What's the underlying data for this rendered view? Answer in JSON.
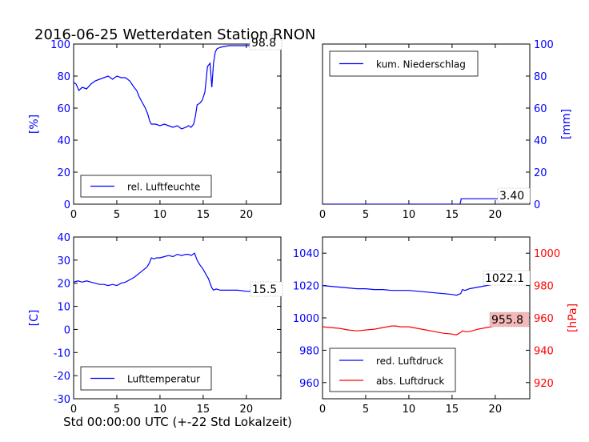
{
  "title": "2016-06-25 Wetterdaten Station RNON",
  "xlabel": "Std 00:00:00 UTC (+-22 Std Lokalzeit)",
  "colors": {
    "blue": "#0000ff",
    "red": "#ff0000",
    "black": "#000000",
    "label_bg_red": "#f4b8b8"
  },
  "chart_data": [
    {
      "id": "humidity",
      "type": "line",
      "ylabel": "[%]",
      "xlim": [
        0,
        24
      ],
      "ylim": [
        0,
        100
      ],
      "xticks": [
        0,
        5,
        10,
        15,
        20
      ],
      "yticks": [
        0,
        20,
        40,
        60,
        80,
        100
      ],
      "legend_placement": "lower-left",
      "value_label": "98.8",
      "series": [
        {
          "name": "rel. Luftfeuchte",
          "color": "#0000ff",
          "x": [
            0,
            0.3,
            0.6,
            1,
            1.5,
            2,
            2.5,
            3,
            3.5,
            4,
            4.5,
            5,
            5.5,
            6,
            6.5,
            7,
            7.3,
            7.6,
            8,
            8.3,
            8.6,
            8.8,
            9,
            9.5,
            10,
            10.5,
            11,
            11.5,
            12,
            12.5,
            13,
            13.3,
            13.6,
            13.9,
            14.1,
            14.3,
            14.6,
            14.9,
            15.2,
            15.5,
            15.8,
            16,
            16.2,
            16.4,
            16.6,
            17,
            17.5,
            18,
            19,
            20,
            21,
            22,
            23,
            23.9
          ],
          "y": [
            76,
            75,
            71,
            73,
            72,
            75,
            77,
            78,
            79,
            80,
            78,
            80,
            79,
            79,
            77,
            73,
            71,
            67,
            63,
            60,
            56,
            52,
            50,
            50,
            49,
            50,
            49,
            48,
            49,
            47,
            48,
            49,
            48,
            50,
            55,
            62,
            63,
            65,
            70,
            86,
            88,
            73,
            88,
            95,
            97,
            98,
            98.5,
            99,
            99,
            99,
            99,
            99,
            99,
            98.8
          ]
        }
      ]
    },
    {
      "id": "precipitation",
      "type": "line",
      "ylabel": "[mm]",
      "xlim": [
        0,
        24
      ],
      "ylim": [
        0,
        100
      ],
      "xticks": [
        0,
        5,
        10,
        15,
        20
      ],
      "yticks": [
        0,
        20,
        40,
        60,
        80,
        100
      ],
      "legend_placement": "top-left",
      "value_label": "3.40",
      "series": [
        {
          "name": "kum. Niederschlag",
          "color": "#0000ff",
          "x": [
            0,
            15.9,
            16.0,
            16.05,
            23.9
          ],
          "y": [
            0,
            0,
            1.7,
            3.4,
            3.4
          ]
        }
      ]
    },
    {
      "id": "temperature",
      "type": "line",
      "ylabel": "[C]",
      "xlim": [
        0,
        24
      ],
      "ylim": [
        -30,
        40
      ],
      "xticks": [
        0,
        5,
        10,
        15,
        20
      ],
      "yticks": [
        -30,
        -20,
        -10,
        0,
        10,
        20,
        30,
        40
      ],
      "legend_placement": "lower-left",
      "value_label": "15.5",
      "series": [
        {
          "name": "Lufttemperatur",
          "color": "#0000ff",
          "x": [
            0,
            0.5,
            1,
            1.5,
            2,
            2.5,
            3,
            3.5,
            4,
            4.5,
            5,
            5.5,
            6,
            6.5,
            7,
            7.5,
            8,
            8.5,
            8.8,
            9,
            9.3,
            9.6,
            10,
            10.5,
            11,
            11.5,
            12,
            12.5,
            13,
            13.3,
            13.6,
            14,
            14.3,
            14.6,
            15,
            15.3,
            15.6,
            15.8,
            16,
            16.2,
            16.5,
            17,
            18,
            19,
            20,
            21,
            22,
            23,
            23.9
          ],
          "y": [
            20.5,
            21,
            20.5,
            21,
            20.5,
            20,
            19.5,
            19.5,
            19,
            19.5,
            19,
            20,
            20.5,
            21.5,
            22.5,
            24,
            25.5,
            27,
            29,
            31,
            30.5,
            31,
            31,
            31.5,
            32,
            31.5,
            32.5,
            32,
            32.5,
            32.5,
            32,
            33,
            30,
            28,
            26,
            24,
            22,
            20,
            18,
            17,
            17.5,
            17,
            17,
            17,
            16.5,
            16.5,
            16,
            16,
            15.5
          ]
        }
      ]
    },
    {
      "id": "pressure",
      "type": "line",
      "ylabel": "[hPa]",
      "xlim": [
        0,
        24
      ],
      "ylim": [
        950,
        1050
      ],
      "ylim_right": [
        910,
        1010
      ],
      "xticks": [
        0,
        5,
        10,
        15,
        20
      ],
      "yticks": [
        960,
        980,
        1000,
        1020,
        1040
      ],
      "yticks_right": [
        920,
        940,
        960,
        980,
        1000
      ],
      "legend_placement": "lower-left",
      "value_labels": [
        "1022.1",
        "955.8"
      ],
      "series": [
        {
          "name": "red. Luftdruck",
          "color": "#0000ff",
          "axis": "left",
          "x": [
            0,
            1,
            2,
            3,
            4,
            5,
            6,
            7,
            8,
            9,
            10,
            11,
            12,
            13,
            14,
            15,
            15.5,
            16,
            16.2,
            16.5,
            17,
            18,
            19,
            20,
            21,
            22,
            23,
            23.9
          ],
          "y": [
            1020,
            1019.5,
            1019,
            1018.5,
            1018,
            1018,
            1017.5,
            1017.5,
            1017,
            1017,
            1017,
            1016.5,
            1016,
            1015.5,
            1015,
            1014.5,
            1014,
            1015,
            1017.5,
            1017,
            1018,
            1019,
            1020,
            1021,
            1021.5,
            1022,
            1022,
            1022.1
          ]
        },
        {
          "name": "abs. Luftdruck",
          "color": "#ff0000",
          "axis": "right",
          "x": [
            0,
            1,
            2,
            3,
            4,
            5,
            6,
            7,
            8,
            8.5,
            9,
            9.5,
            10,
            11,
            12,
            13,
            14,
            15,
            15.5,
            16,
            16.2,
            16.5,
            17,
            18,
            19,
            20,
            21,
            22,
            23,
            23.9
          ],
          "y": [
            954.5,
            954,
            953.5,
            952.5,
            952,
            952.5,
            953,
            954,
            955,
            955,
            954.5,
            954.5,
            954.5,
            953.5,
            952.5,
            951.5,
            950.5,
            950,
            949.5,
            951,
            952,
            951.5,
            951.5,
            953,
            954,
            955,
            955.5,
            955.8,
            955.8,
            955.8
          ]
        }
      ]
    }
  ]
}
